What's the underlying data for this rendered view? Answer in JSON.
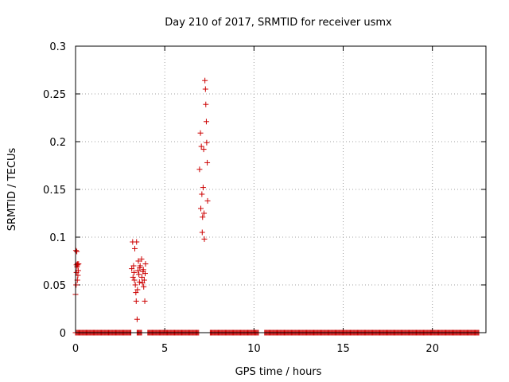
{
  "chart_data": {
    "type": "scatter",
    "title": "Day 210 of 2017, SRMTID for receiver usmx",
    "xlabel": "GPS time / hours",
    "ylabel": "SRMTID / TECUs",
    "xlim": [
      0,
      23
    ],
    "ylim": [
      0,
      0.3
    ],
    "xticks": [
      0,
      5,
      10,
      15,
      20
    ],
    "yticks": [
      0,
      0.05,
      0.1,
      0.15,
      0.2,
      0.25,
      0.3
    ],
    "xtick_labels": [
      "0",
      "5",
      "10",
      "15",
      "20"
    ],
    "ytick_labels": [
      "0",
      "0.05",
      "0.1",
      "0.15",
      "0.2",
      "0.25",
      "0.3"
    ],
    "grid": true,
    "legend": "none",
    "marker": "+",
    "color": "#cc0000",
    "series": [
      {
        "x": [
          0.0,
          0.02,
          0.03,
          0.05,
          0.05,
          0.07,
          0.08,
          0.1,
          0.1,
          0.12,
          0.13,
          0.15,
          0.17,
          3.15,
          3.2,
          3.22,
          3.25,
          3.28,
          3.3,
          3.32,
          3.35,
          3.38,
          3.4,
          3.42,
          3.45,
          3.47,
          3.5,
          3.52,
          3.55,
          3.58,
          3.6,
          3.62,
          3.7,
          3.72,
          3.75,
          3.78,
          3.8,
          3.82,
          3.85,
          3.88,
          3.9,
          3.92,
          6.95,
          7.0,
          7.02,
          7.05,
          7.08,
          7.1,
          7.12,
          7.15,
          7.18,
          7.2,
          7.22,
          7.25,
          7.28,
          7.3,
          7.33,
          7.35,
          7.38,
          7.4
        ],
        "y": [
          0.04,
          0.086,
          0.05,
          0.063,
          0.071,
          0.085,
          0.069,
          0.072,
          0.055,
          0.071,
          0.06,
          0.065,
          0.072,
          0.067,
          0.095,
          0.058,
          0.07,
          0.063,
          0.055,
          0.088,
          0.05,
          0.042,
          0.033,
          0.095,
          0.014,
          0.045,
          0.065,
          0.075,
          0.061,
          0.053,
          0.068,
          0.07,
          0.077,
          0.058,
          0.052,
          0.064,
          0.066,
          0.048,
          0.055,
          0.033,
          0.062,
          0.072,
          0.171,
          0.209,
          0.13,
          0.195,
          0.145,
          0.105,
          0.121,
          0.152,
          0.192,
          0.125,
          0.098,
          0.264,
          0.255,
          0.239,
          0.221,
          0.199,
          0.178,
          0.138
        ]
      },
      {
        "x_range": [
          0,
          22.6
        ],
        "y": 0,
        "gaps": [
          [
            3.1,
            3.4
          ],
          [
            3.7,
            4.0
          ],
          [
            6.9,
            7.5
          ],
          [
            10.3,
            10.6
          ]
        ]
      }
    ]
  }
}
